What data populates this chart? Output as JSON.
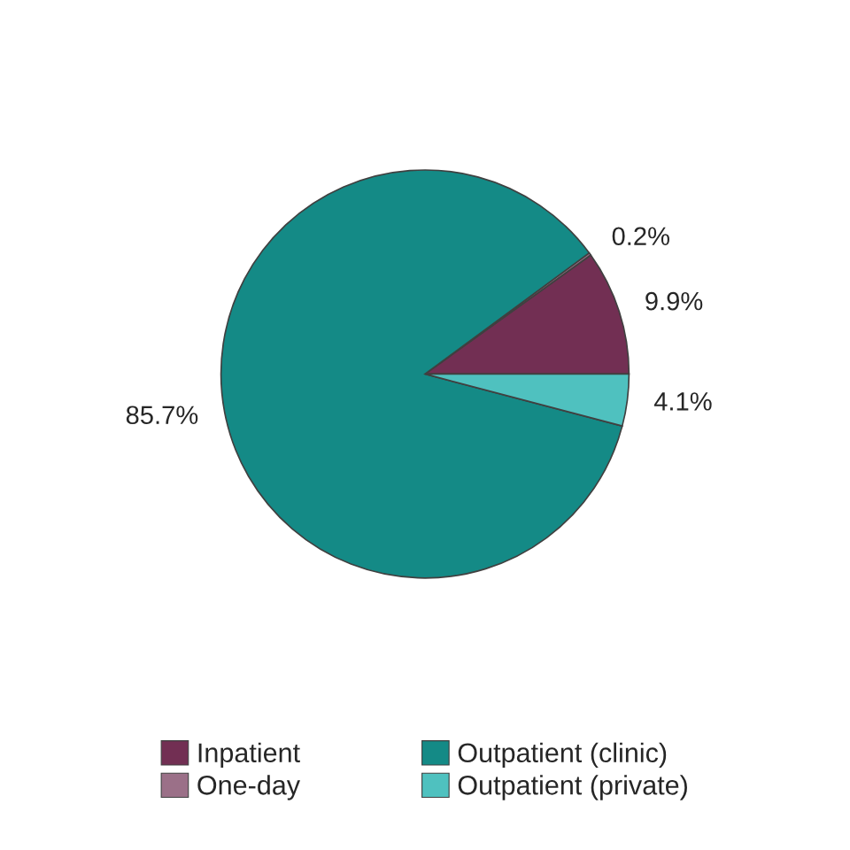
{
  "chart_data": {
    "type": "pie",
    "categories": [
      "Inpatient",
      "One-day",
      "Outpatient (clinic)",
      "Outpatient (private)"
    ],
    "values": [
      9.9,
      0.2,
      85.7,
      4.1
    ],
    "colors": [
      "#722f53",
      "#9b7088",
      "#148a86",
      "#4fc1bf"
    ],
    "value_labels": [
      "9.9%",
      "0.2%",
      "85.7%",
      "4.1%"
    ],
    "legend": "bottom"
  }
}
